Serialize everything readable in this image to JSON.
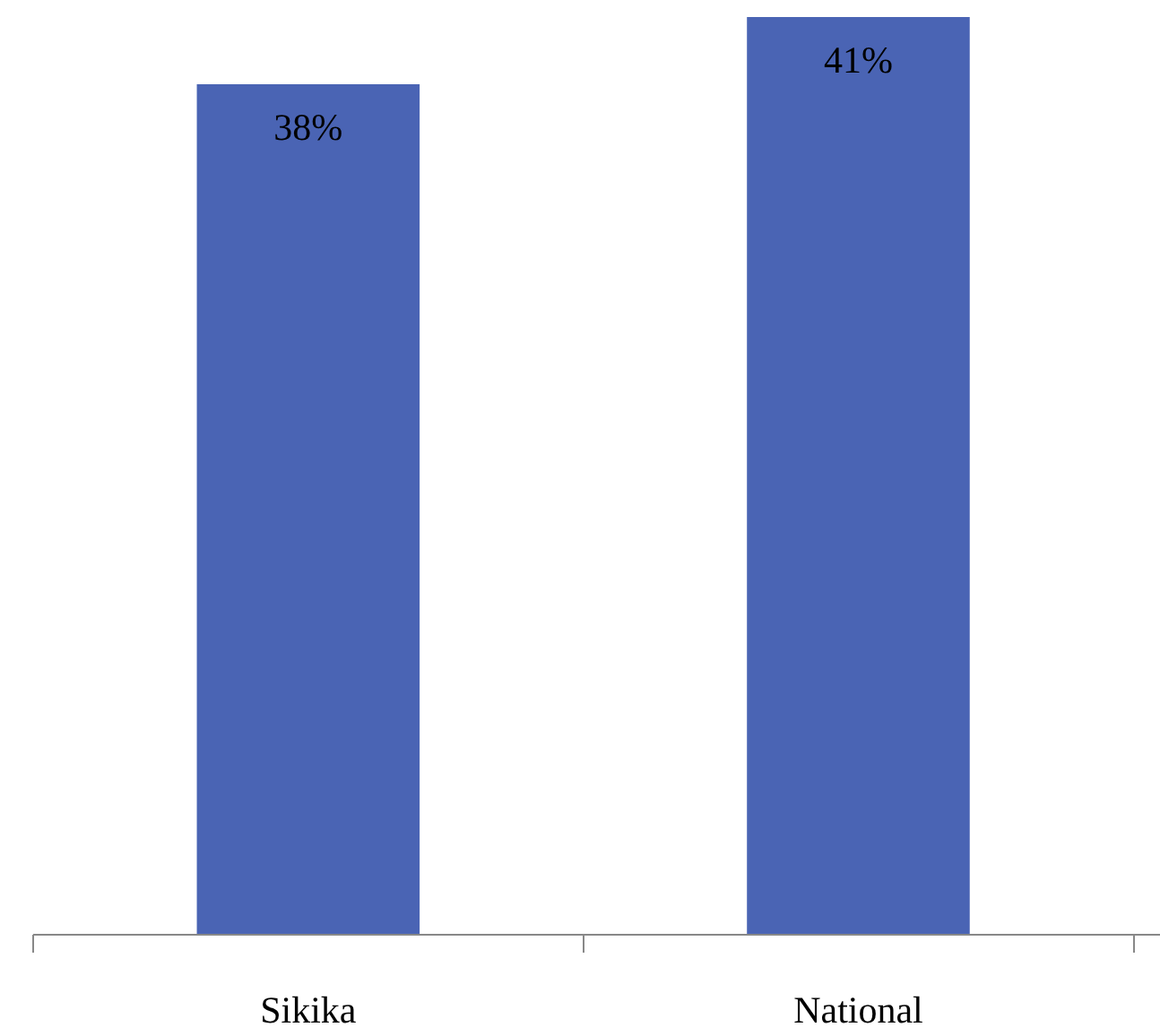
{
  "chart_data": {
    "type": "bar",
    "categories": [
      "Sikika",
      "National"
    ],
    "values": [
      38,
      41
    ],
    "value_labels": [
      "38%",
      "41%"
    ],
    "color": "#4a64b4"
  }
}
